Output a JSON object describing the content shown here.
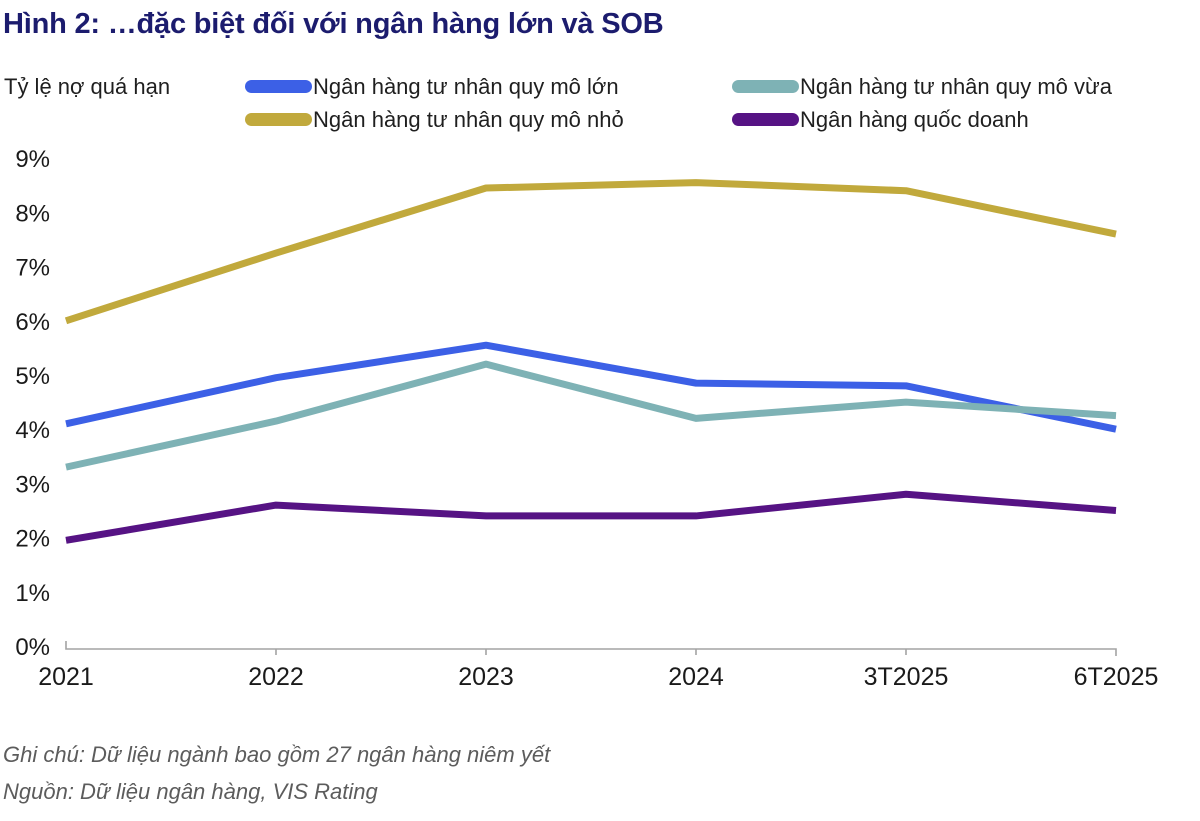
{
  "title": "Hình 2: …đặc biệt đối với ngân hàng lớn và SOB",
  "y_axis_title": "Tỷ lệ nợ quá hạn",
  "notes": {
    "note": "Ghi chú: Dữ liệu ngành bao gồm 27 ngân hàng niêm yết",
    "source": "Nguồn: Dữ liệu ngân hàng, VIS Rating"
  },
  "colors": {
    "title": "#1C1C6E",
    "axis": "#a3a3a3",
    "text": "#1a1a1a",
    "notes_text": "#5c5c5c"
  },
  "chart_data": {
    "type": "line",
    "title": "Hình 2: …đặc biệt đối với ngân hàng lớn và SOB",
    "ylabel": "Tỷ lệ nợ quá hạn",
    "categories": [
      "2021",
      "2022",
      "2023",
      "2024",
      "3T2025",
      "6T2025"
    ],
    "series": [
      {
        "name": "Ngân hàng tư nhân quy mô lớn",
        "color": "#3C60E6",
        "values": [
          4.1,
          4.95,
          5.55,
          4.85,
          4.8,
          4.0
        ]
      },
      {
        "name": "Ngân hàng tư nhân quy mô vừa",
        "color": "#7EB2B5",
        "values": [
          3.3,
          4.15,
          5.2,
          4.2,
          4.5,
          4.25
        ]
      },
      {
        "name": "Ngân hàng tư nhân quy mô nhỏ",
        "color": "#C1A93C",
        "values": [
          6.0,
          7.25,
          8.45,
          8.55,
          8.4,
          7.6
        ]
      },
      {
        "name": "Ngân hàng quốc doanh",
        "color": "#561384",
        "values": [
          1.95,
          2.6,
          2.4,
          2.4,
          2.8,
          2.5
        ]
      }
    ],
    "ylim": [
      0,
      9
    ],
    "ytick_step": 1,
    "ytick_suffix": "%",
    "grid": false,
    "legend_position": "top"
  }
}
